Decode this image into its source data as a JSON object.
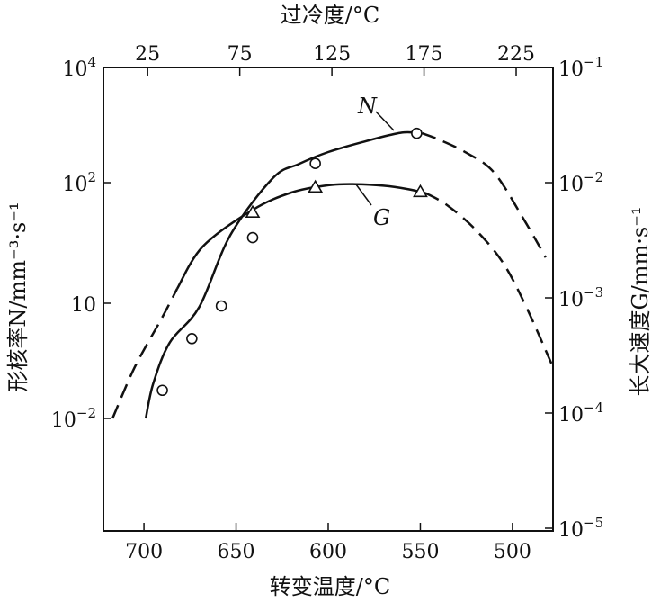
{
  "chart_data": {
    "type": "line",
    "x_bottom": {
      "label": "转变温度/°C",
      "ticks": [
        700,
        650,
        600,
        550,
        500
      ],
      "range": [
        722,
        478
      ]
    },
    "x_top": {
      "label": "过冷度/°C",
      "ticks": [
        25,
        75,
        125,
        175,
        225
      ]
    },
    "y_left": {
      "label": "形核率N/mm⁻³·s⁻¹",
      "scale": "log",
      "ticks": [
        {
          "value": 0.01,
          "base": "10",
          "exp": "−2"
        },
        {
          "value": 10,
          "base": "10",
          "exp": ""
        },
        {
          "value": 100,
          "base": "10",
          "exp": "2"
        },
        {
          "value": 10000,
          "base": "10",
          "exp": "4"
        }
      ]
    },
    "y_right": {
      "label": "长大速度G/mm·s⁻¹",
      "scale": "log",
      "ticks": [
        {
          "value": 0.1,
          "base": "10",
          "exp": "−1"
        },
        {
          "value": 0.01,
          "base": "10",
          "exp": "−2"
        },
        {
          "value": 0.001,
          "base": "10",
          "exp": "−3"
        },
        {
          "value": 0.0001,
          "base": "10",
          "exp": "−4"
        },
        {
          "value": 1e-05,
          "base": "10",
          "exp": "−5"
        }
      ]
    },
    "series": [
      {
        "name": "N",
        "marker": "circle",
        "solid": [
          [
            699,
            0.01
          ],
          [
            695,
            0.08
          ],
          [
            686,
            0.95
          ],
          [
            670,
            8
          ],
          [
            653,
            37
          ],
          [
            630,
            120
          ],
          [
            616,
            210
          ],
          [
            600,
            340
          ],
          [
            580,
            520
          ],
          [
            564,
            700
          ],
          [
            557,
            750
          ],
          [
            549,
            720
          ]
        ],
        "dashed": [
          [
            549,
            720
          ],
          [
            540,
            560
          ],
          [
            525,
            330
          ],
          [
            510,
            150
          ],
          [
            494,
            50
          ],
          [
            482,
            24
          ]
        ],
        "markers": [
          [
            690,
            0.054
          ],
          [
            674,
            1.2
          ],
          [
            658,
            8.5
          ],
          [
            641,
            35
          ],
          [
            607,
            215
          ],
          [
            552,
            718
          ]
        ]
      },
      {
        "name": "G",
        "marker": "triangle",
        "solid": [
          [
            682,
            0.0012
          ],
          [
            668,
            0.0028
          ],
          [
            641,
            0.0058
          ],
          [
            620,
            0.0082
          ],
          [
            600,
            0.0095
          ],
          [
            585,
            0.0097
          ],
          [
            570,
            0.0094
          ],
          [
            557,
            0.0088
          ],
          [
            547,
            0.0081
          ]
        ],
        "dashed": [
          [
            717,
            9e-05
          ],
          [
            705,
            0.00025
          ],
          [
            690,
            0.00068
          ],
          [
            682,
            0.0012
          ],
          [
            547,
            0.0081
          ],
          [
            535,
            0.0063
          ],
          [
            520,
            0.0039
          ],
          [
            505,
            0.002
          ],
          [
            492,
            0.0008
          ],
          [
            478,
            0.00025
          ]
        ],
        "markers": [
          [
            641,
            0.0055
          ],
          [
            607,
            0.0091
          ],
          [
            550,
            0.0083
          ]
        ]
      }
    ],
    "labels": {
      "N": "N",
      "G": "G"
    }
  }
}
